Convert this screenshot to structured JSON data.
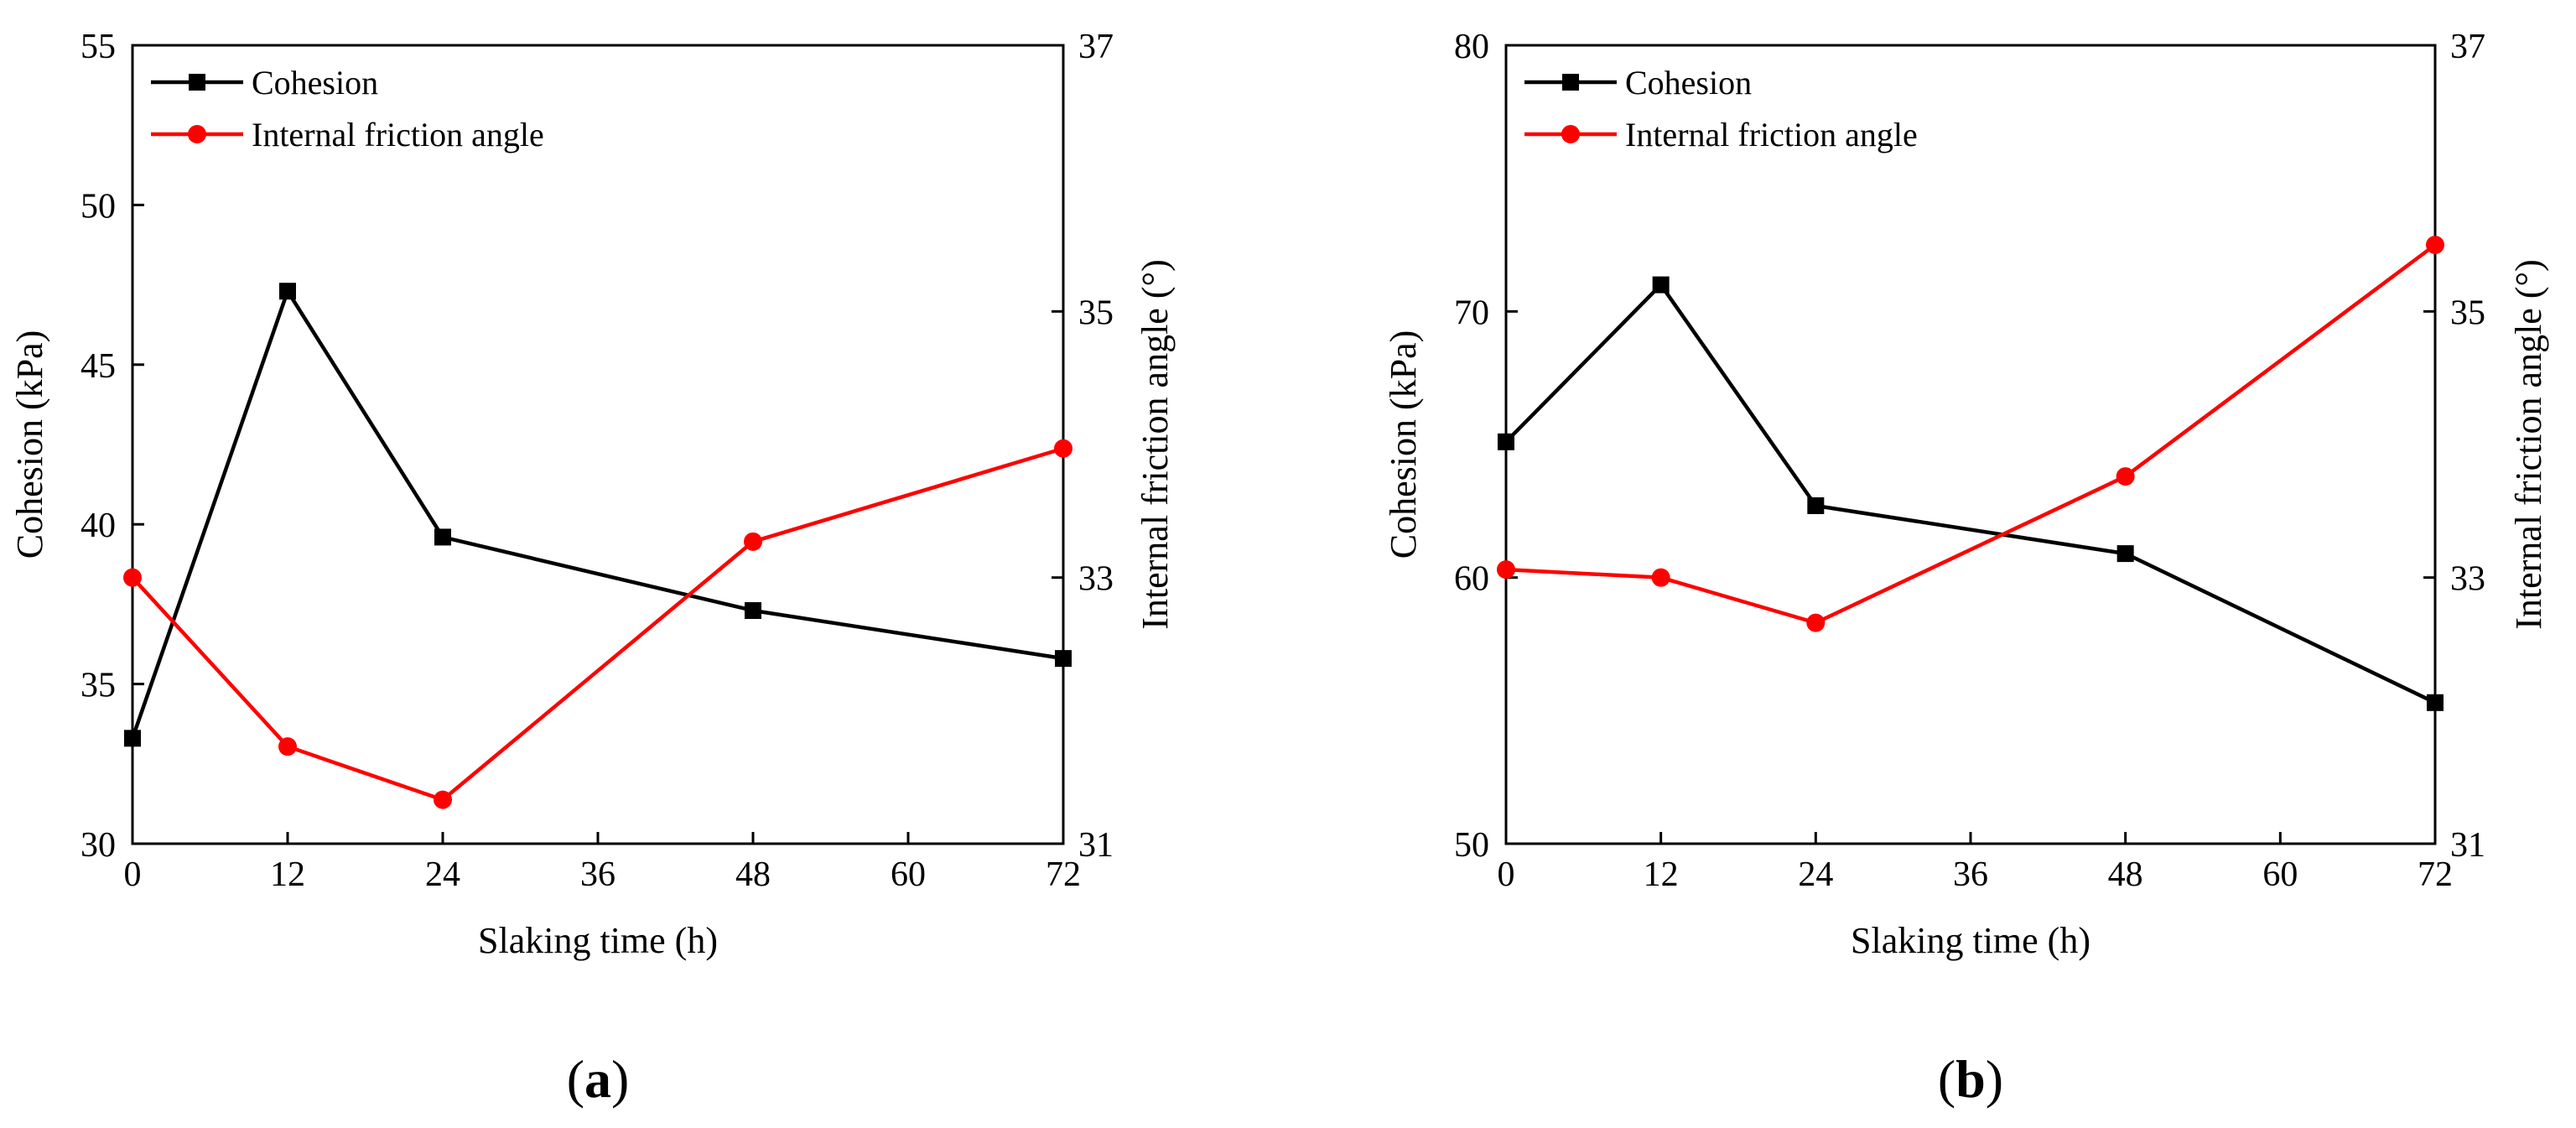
{
  "chart_data": [
    {
      "type": "line",
      "caption": "a",
      "xlabel": "Slaking time (h)",
      "ylabel": "Cohesion (kPa)",
      "y2label": "Internal friction angle (°)",
      "x": [
        0,
        12,
        24,
        48,
        72
      ],
      "xticks": [
        0,
        12,
        24,
        36,
        48,
        60,
        72
      ],
      "xlim": [
        0,
        72
      ],
      "ylim": [
        30,
        55
      ],
      "yticks": [
        30,
        35,
        40,
        45,
        50,
        55
      ],
      "y2lim": [
        31,
        37
      ],
      "y2ticks": [
        31,
        33,
        35,
        37
      ],
      "legend_position": "top-left",
      "series": [
        {
          "name": "Cohesion",
          "axis": "left",
          "marker": "square",
          "color": "#000000",
          "values": [
            33.3,
            47.3,
            39.6,
            37.3,
            35.8
          ]
        },
        {
          "name": "Internal friction angle",
          "axis": "right",
          "marker": "circle",
          "color": "#ff0000",
          "values": [
            33.0,
            31.73,
            31.33,
            33.27,
            33.97
          ]
        }
      ]
    },
    {
      "type": "line",
      "caption": "b",
      "xlabel": "Slaking time (h)",
      "ylabel": "Cohesion (kPa)",
      "y2label": "Internal friction angle (°)",
      "x": [
        0,
        12,
        24,
        48,
        72
      ],
      "xticks": [
        0,
        12,
        24,
        36,
        48,
        60,
        72
      ],
      "xlim": [
        0,
        72
      ],
      "ylim": [
        50,
        80
      ],
      "yticks": [
        50,
        60,
        70,
        80
      ],
      "y2lim": [
        31,
        37
      ],
      "y2ticks": [
        31,
        33,
        35,
        37
      ],
      "legend_position": "top-left",
      "series": [
        {
          "name": "Cohesion",
          "axis": "left",
          "marker": "square",
          "color": "#000000",
          "values": [
            65.1,
            71.0,
            62.7,
            60.9,
            55.3
          ]
        },
        {
          "name": "Internal friction angle",
          "axis": "right",
          "marker": "circle",
          "color": "#ff0000",
          "values": [
            33.06,
            33.0,
            32.66,
            33.76,
            35.5
          ]
        }
      ]
    }
  ]
}
